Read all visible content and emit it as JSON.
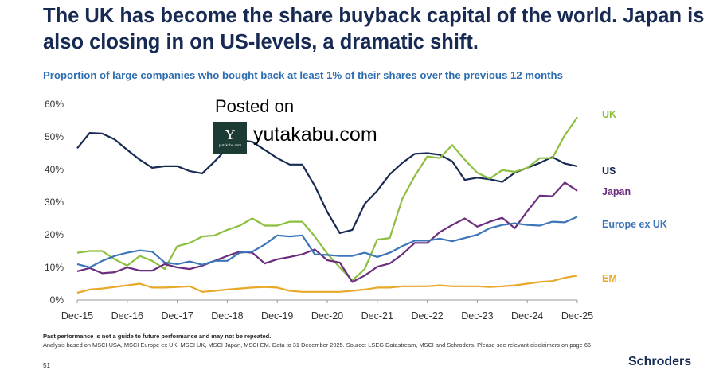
{
  "title": "The UK has become the share buyback capital of the world. Japan is also closing in on US-levels, a dramatic shift.",
  "subtitle": "Proportion of large companies who bought back at least 1% of their shares over the previous 12 months",
  "watermark": {
    "posted": "Posted on",
    "logo_letter": "Y",
    "logo_small": "yutakabu.com",
    "url": "yutakabu.com"
  },
  "footnote": "Past performance is not a guide to future performance and may not be repeated.",
  "analysis": "Analysis based on MSCI USA, MSCI Europe ex UK, MSCI UK, MSCI Japan, MSCI EM. Data to 31 December 2025. Source: LSEG Datastream, MSCI and Schroders. Please see relevant disclaimers on page 66",
  "page_number": "51",
  "brand": "Schroders",
  "chart_data": {
    "type": "line",
    "title": "",
    "xlabel": "",
    "ylabel": "",
    "ylim": [
      0,
      60
    ],
    "xlim": [
      2015.92,
      2025.92
    ],
    "grid": false,
    "legend": "direct labels at right end of lines",
    "yticks": [
      "0%",
      "10%",
      "20%",
      "30%",
      "40%",
      "50%",
      "60%"
    ],
    "ytick_values": [
      0,
      10,
      20,
      30,
      40,
      50,
      60
    ],
    "xticks": [
      "Dec-15",
      "Dec-16",
      "Dec-17",
      "Dec-18",
      "Dec-19",
      "Dec-20",
      "Dec-21",
      "Dec-22",
      "Dec-23",
      "Dec-24",
      "Dec-25"
    ],
    "xtick_values": [
      2015.92,
      2016.92,
      2017.92,
      2018.92,
      2019.92,
      2020.92,
      2021.92,
      2022.92,
      2023.92,
      2024.92,
      2025.92
    ],
    "series": [
      {
        "name": "US",
        "color": "#172a53",
        "x": [
          2015.92,
          2016.17,
          2016.42,
          2016.67,
          2016.92,
          2017.17,
          2017.42,
          2017.67,
          2017.92,
          2018.17,
          2018.42,
          2018.67,
          2018.92,
          2019.17,
          2019.42,
          2019.67,
          2019.92,
          2020.17,
          2020.42,
          2020.67,
          2020.92,
          2021.17,
          2021.42,
          2021.67,
          2021.92,
          2022.17,
          2022.42,
          2022.67,
          2022.92,
          2023.17,
          2023.42,
          2023.67,
          2023.92,
          2024.17,
          2024.42,
          2024.67,
          2024.92,
          2025.17,
          2025.42,
          2025.67,
          2025.92
        ],
        "values": [
          46.5,
          51.2,
          51,
          49.2,
          46,
          43,
          40.5,
          41,
          41,
          39.5,
          38.8,
          42.5,
          46.5,
          49,
          48.5,
          46,
          43.5,
          41.5,
          41.5,
          35,
          27,
          20.5,
          21.5,
          29.5,
          33.5,
          38.5,
          42,
          44.8,
          45,
          44.5,
          42.5,
          36.8,
          37.5,
          37,
          36.2,
          39,
          40.5,
          42,
          43.8,
          41.8,
          41
        ]
      },
      {
        "name": "UK",
        "color": "#8cbf3f",
        "x": [
          2015.92,
          2016.17,
          2016.42,
          2016.67,
          2016.92,
          2017.17,
          2017.42,
          2017.67,
          2017.92,
          2018.17,
          2018.42,
          2018.67,
          2018.92,
          2019.17,
          2019.42,
          2019.67,
          2019.92,
          2020.17,
          2020.42,
          2020.67,
          2020.92,
          2021.17,
          2021.42,
          2021.67,
          2021.92,
          2022.17,
          2022.42,
          2022.67,
          2022.92,
          2023.17,
          2023.42,
          2023.67,
          2023.92,
          2024.17,
          2024.42,
          2024.67,
          2024.92,
          2025.17,
          2025.42,
          2025.67,
          2025.92
        ],
        "values": [
          14.5,
          15,
          15,
          12.5,
          10.5,
          13.5,
          12,
          9.5,
          16.5,
          17.5,
          19.5,
          19.8,
          21.5,
          22.8,
          25,
          22.8,
          22.8,
          24,
          24,
          19.5,
          14.2,
          10,
          6,
          9.5,
          18.5,
          19,
          31,
          38,
          44,
          43.5,
          47.5,
          43,
          39,
          37.2,
          39.8,
          39.3,
          40.5,
          43.5,
          43.5,
          50.5,
          56
        ]
      },
      {
        "name": "Japan",
        "color": "#6b2d7e",
        "x": [
          2015.92,
          2016.17,
          2016.42,
          2016.67,
          2016.92,
          2017.17,
          2017.42,
          2017.67,
          2017.92,
          2018.17,
          2018.42,
          2018.67,
          2018.92,
          2019.17,
          2019.42,
          2019.67,
          2019.92,
          2020.17,
          2020.42,
          2020.67,
          2020.92,
          2021.17,
          2021.42,
          2021.67,
          2021.92,
          2022.17,
          2022.42,
          2022.67,
          2022.92,
          2023.17,
          2023.42,
          2023.67,
          2023.92,
          2024.17,
          2024.42,
          2024.67,
          2024.92,
          2025.17,
          2025.42,
          2025.67,
          2025.92
        ],
        "values": [
          8.8,
          9.8,
          8.2,
          8.5,
          10,
          9,
          9,
          11,
          10,
          9.5,
          10.5,
          12,
          13.5,
          14.8,
          14.5,
          11.2,
          12.5,
          13.2,
          14,
          15.5,
          12.2,
          11.5,
          5.5,
          7.5,
          10.2,
          11.2,
          14,
          17.5,
          17.5,
          20.8,
          23,
          25,
          22.5,
          24,
          25.2,
          22,
          27.2,
          32,
          31.8,
          36,
          33.5
        ]
      },
      {
        "name": "Europe ex UK",
        "color": "#3c75b8",
        "x": [
          2015.92,
          2016.17,
          2016.42,
          2016.67,
          2016.92,
          2017.17,
          2017.42,
          2017.67,
          2017.92,
          2018.17,
          2018.42,
          2018.67,
          2018.92,
          2019.17,
          2019.42,
          2019.67,
          2019.92,
          2020.17,
          2020.42,
          2020.67,
          2020.92,
          2021.17,
          2021.42,
          2021.67,
          2021.92,
          2022.17,
          2022.42,
          2022.67,
          2022.92,
          2023.17,
          2023.42,
          2023.67,
          2023.92,
          2024.17,
          2024.42,
          2024.67,
          2024.92,
          2025.17,
          2025.42,
          2025.67,
          2025.92
        ],
        "values": [
          11,
          10,
          12,
          13.5,
          14.5,
          15.2,
          14.8,
          11.5,
          11,
          11.8,
          10.8,
          12,
          12,
          14.5,
          14.8,
          17,
          19.8,
          19.5,
          19.8,
          14,
          13.8,
          13.5,
          13.5,
          14.5,
          13.2,
          14.5,
          16.5,
          18.2,
          18.2,
          18.8,
          18,
          19,
          20,
          22,
          23,
          23.5,
          23,
          22.8,
          24,
          23.8,
          25.5
        ]
      },
      {
        "name": "EM",
        "color": "#e8a829",
        "x": [
          2015.92,
          2016.17,
          2016.42,
          2016.67,
          2016.92,
          2017.17,
          2017.42,
          2017.67,
          2017.92,
          2018.17,
          2018.42,
          2018.67,
          2018.92,
          2019.17,
          2019.42,
          2019.67,
          2019.92,
          2020.17,
          2020.42,
          2020.67,
          2020.92,
          2021.17,
          2021.42,
          2021.67,
          2021.92,
          2022.17,
          2022.42,
          2022.67,
          2022.92,
          2023.17,
          2023.42,
          2023.67,
          2023.92,
          2024.17,
          2024.42,
          2024.67,
          2024.92,
          2025.17,
          2025.42,
          2025.67,
          2025.92
        ],
        "values": [
          2.2,
          3.2,
          3.5,
          4,
          4.5,
          5,
          3.8,
          3.8,
          4,
          4.2,
          2.5,
          2.8,
          3.2,
          3.5,
          3.8,
          4,
          3.8,
          2.8,
          2.5,
          2.5,
          2.5,
          2.5,
          2.8,
          3.2,
          3.8,
          3.8,
          4.2,
          4.2,
          4.2,
          4.5,
          4.2,
          4.2,
          4.2,
          4,
          4.2,
          4.5,
          5,
          5.5,
          5.8,
          6.8,
          7.5
        ]
      }
    ],
    "series_labels": [
      {
        "name": "UK",
        "color": "#8cbf3f"
      },
      {
        "name": "US",
        "color": "#172a53"
      },
      {
        "name": "Japan",
        "color": "#6b2d7e"
      },
      {
        "name": "Europe ex UK",
        "color": "#3c75b8"
      },
      {
        "name": "EM",
        "color": "#e8a829"
      }
    ]
  }
}
